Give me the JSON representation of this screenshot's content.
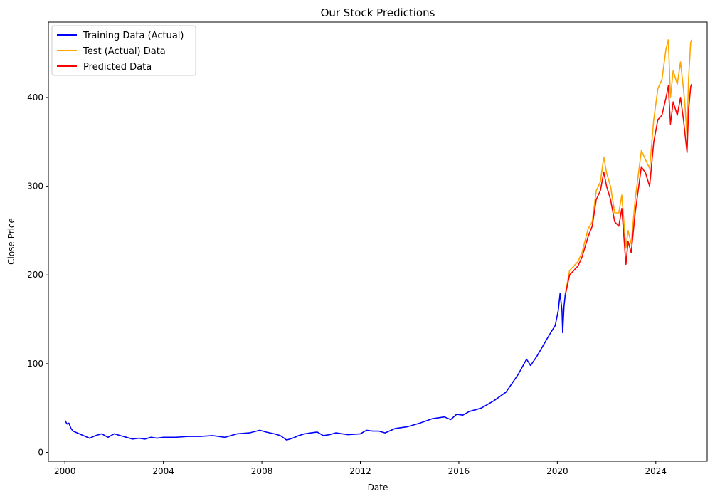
{
  "chart_data": {
    "type": "line",
    "title": "Our Stock Predictions",
    "xlabel": "Date",
    "ylabel": "Close Price",
    "xlim": [
      "1999-05-01",
      "2026-02-01"
    ],
    "ylim": [
      -10,
      485
    ],
    "x_ticks": [
      "2000",
      "2004",
      "2008",
      "2012",
      "2016",
      "2020",
      "2024"
    ],
    "y_ticks": [
      0,
      100,
      200,
      300,
      400
    ],
    "legend_position": "upper-left",
    "grid": false,
    "series": [
      {
        "name": "Training Data (Actual)",
        "color": "#0000ff",
        "points": [
          [
            "2000-01-03",
            36
          ],
          [
            "2000-02-01",
            32
          ],
          [
            "2000-03-01",
            33
          ],
          [
            "2000-04-01",
            27
          ],
          [
            "2000-05-01",
            24
          ],
          [
            "2000-07-01",
            22
          ],
          [
            "2000-09-01",
            20
          ],
          [
            "2000-11-01",
            18
          ],
          [
            "2001-01-01",
            16
          ],
          [
            "2001-04-01",
            19
          ],
          [
            "2001-07-01",
            21
          ],
          [
            "2001-10-01",
            17
          ],
          [
            "2002-01-01",
            21
          ],
          [
            "2002-04-01",
            19
          ],
          [
            "2002-07-01",
            17
          ],
          [
            "2002-10-01",
            15
          ],
          [
            "2003-01-01",
            16
          ],
          [
            "2003-04-01",
            15
          ],
          [
            "2003-07-01",
            17
          ],
          [
            "2003-10-01",
            16
          ],
          [
            "2004-01-01",
            17
          ],
          [
            "2004-07-01",
            17
          ],
          [
            "2005-01-01",
            18
          ],
          [
            "2005-07-01",
            18
          ],
          [
            "2006-01-01",
            19
          ],
          [
            "2006-07-01",
            17
          ],
          [
            "2007-01-01",
            21
          ],
          [
            "2007-07-01",
            22
          ],
          [
            "2007-12-01",
            25
          ],
          [
            "2008-03-01",
            23
          ],
          [
            "2008-07-01",
            21
          ],
          [
            "2008-10-01",
            19
          ],
          [
            "2009-01-01",
            14
          ],
          [
            "2009-04-01",
            16
          ],
          [
            "2009-07-01",
            19
          ],
          [
            "2009-10-01",
            21
          ],
          [
            "2010-01-01",
            22
          ],
          [
            "2010-04-01",
            23
          ],
          [
            "2010-07-01",
            19
          ],
          [
            "2010-10-01",
            20
          ],
          [
            "2011-01-01",
            22
          ],
          [
            "2011-07-01",
            20
          ],
          [
            "2012-01-01",
            21
          ],
          [
            "2012-04-01",
            25
          ],
          [
            "2012-07-01",
            24
          ],
          [
            "2012-10-01",
            24
          ],
          [
            "2013-01-01",
            22
          ],
          [
            "2013-06-01",
            27
          ],
          [
            "2013-12-01",
            29
          ],
          [
            "2014-06-01",
            33
          ],
          [
            "2014-12-01",
            38
          ],
          [
            "2015-06-01",
            40
          ],
          [
            "2015-09-01",
            37
          ],
          [
            "2015-12-01",
            43
          ],
          [
            "2016-03-01",
            42
          ],
          [
            "2016-06-01",
            46
          ],
          [
            "2016-12-01",
            50
          ],
          [
            "2017-06-01",
            58
          ],
          [
            "2017-12-01",
            68
          ],
          [
            "2018-06-01",
            88
          ],
          [
            "2018-10-01",
            105
          ],
          [
            "2018-12-01",
            98
          ],
          [
            "2019-03-01",
            108
          ],
          [
            "2019-06-01",
            120
          ],
          [
            "2019-09-01",
            132
          ],
          [
            "2019-12-01",
            143
          ],
          [
            "2020-01-15",
            160
          ],
          [
            "2020-02-10",
            179
          ],
          [
            "2020-03-10",
            160
          ],
          [
            "2020-03-20",
            135
          ],
          [
            "2020-04-10",
            165
          ],
          [
            "2020-05-01",
            180
          ]
        ]
      },
      {
        "name": "Test (Actual) Data",
        "color": "#ffa500",
        "points": [
          [
            "2020-05-01",
            180
          ],
          [
            "2020-07-01",
            205
          ],
          [
            "2020-09-01",
            210
          ],
          [
            "2020-11-01",
            215
          ],
          [
            "2021-01-01",
            225
          ],
          [
            "2021-04-01",
            252
          ],
          [
            "2021-06-01",
            260
          ],
          [
            "2021-08-01",
            295
          ],
          [
            "2021-10-01",
            305
          ],
          [
            "2021-11-20",
            333
          ],
          [
            "2022-01-01",
            315
          ],
          [
            "2022-03-01",
            300
          ],
          [
            "2022-05-01",
            270
          ],
          [
            "2022-07-01",
            270
          ],
          [
            "2022-08-15",
            290
          ],
          [
            "2022-10-15",
            230
          ],
          [
            "2022-11-15",
            250
          ],
          [
            "2023-01-01",
            235
          ],
          [
            "2023-03-01",
            285
          ],
          [
            "2023-06-01",
            340
          ],
          [
            "2023-08-01",
            330
          ],
          [
            "2023-10-01",
            320
          ],
          [
            "2023-12-01",
            375
          ],
          [
            "2024-02-01",
            410
          ],
          [
            "2024-04-01",
            420
          ],
          [
            "2024-06-01",
            455
          ],
          [
            "2024-07-05",
            465
          ],
          [
            "2024-08-05",
            400
          ],
          [
            "2024-09-15",
            430
          ],
          [
            "2024-11-15",
            415
          ],
          [
            "2025-01-01",
            440
          ],
          [
            "2025-02-15",
            410
          ],
          [
            "2025-03-15",
            385
          ],
          [
            "2025-04-08",
            355
          ],
          [
            "2025-05-01",
            420
          ],
          [
            "2025-06-01",
            462
          ],
          [
            "2025-06-15",
            465
          ]
        ]
      },
      {
        "name": "Predicted Data",
        "color": "#ff0000",
        "points": [
          [
            "2020-05-01",
            178
          ],
          [
            "2020-07-01",
            200
          ],
          [
            "2020-09-01",
            205
          ],
          [
            "2020-11-01",
            210
          ],
          [
            "2021-01-01",
            220
          ],
          [
            "2021-04-01",
            243
          ],
          [
            "2021-06-01",
            255
          ],
          [
            "2021-08-01",
            285
          ],
          [
            "2021-10-01",
            295
          ],
          [
            "2021-11-20",
            316
          ],
          [
            "2022-01-01",
            300
          ],
          [
            "2022-03-01",
            285
          ],
          [
            "2022-05-01",
            260
          ],
          [
            "2022-07-01",
            255
          ],
          [
            "2022-08-15",
            275
          ],
          [
            "2022-10-15",
            212
          ],
          [
            "2022-11-15",
            238
          ],
          [
            "2023-01-01",
            225
          ],
          [
            "2023-03-01",
            270
          ],
          [
            "2023-06-01",
            322
          ],
          [
            "2023-08-01",
            315
          ],
          [
            "2023-10-01",
            300
          ],
          [
            "2023-12-01",
            350
          ],
          [
            "2024-02-01",
            375
          ],
          [
            "2024-04-01",
            380
          ],
          [
            "2024-06-01",
            400
          ],
          [
            "2024-07-05",
            413
          ],
          [
            "2024-08-05",
            370
          ],
          [
            "2024-09-15",
            395
          ],
          [
            "2024-11-15",
            380
          ],
          [
            "2025-01-01",
            400
          ],
          [
            "2025-02-15",
            375
          ],
          [
            "2025-03-15",
            355
          ],
          [
            "2025-04-08",
            338
          ],
          [
            "2025-05-01",
            385
          ],
          [
            "2025-06-01",
            412
          ],
          [
            "2025-06-15",
            415
          ]
        ]
      }
    ]
  }
}
